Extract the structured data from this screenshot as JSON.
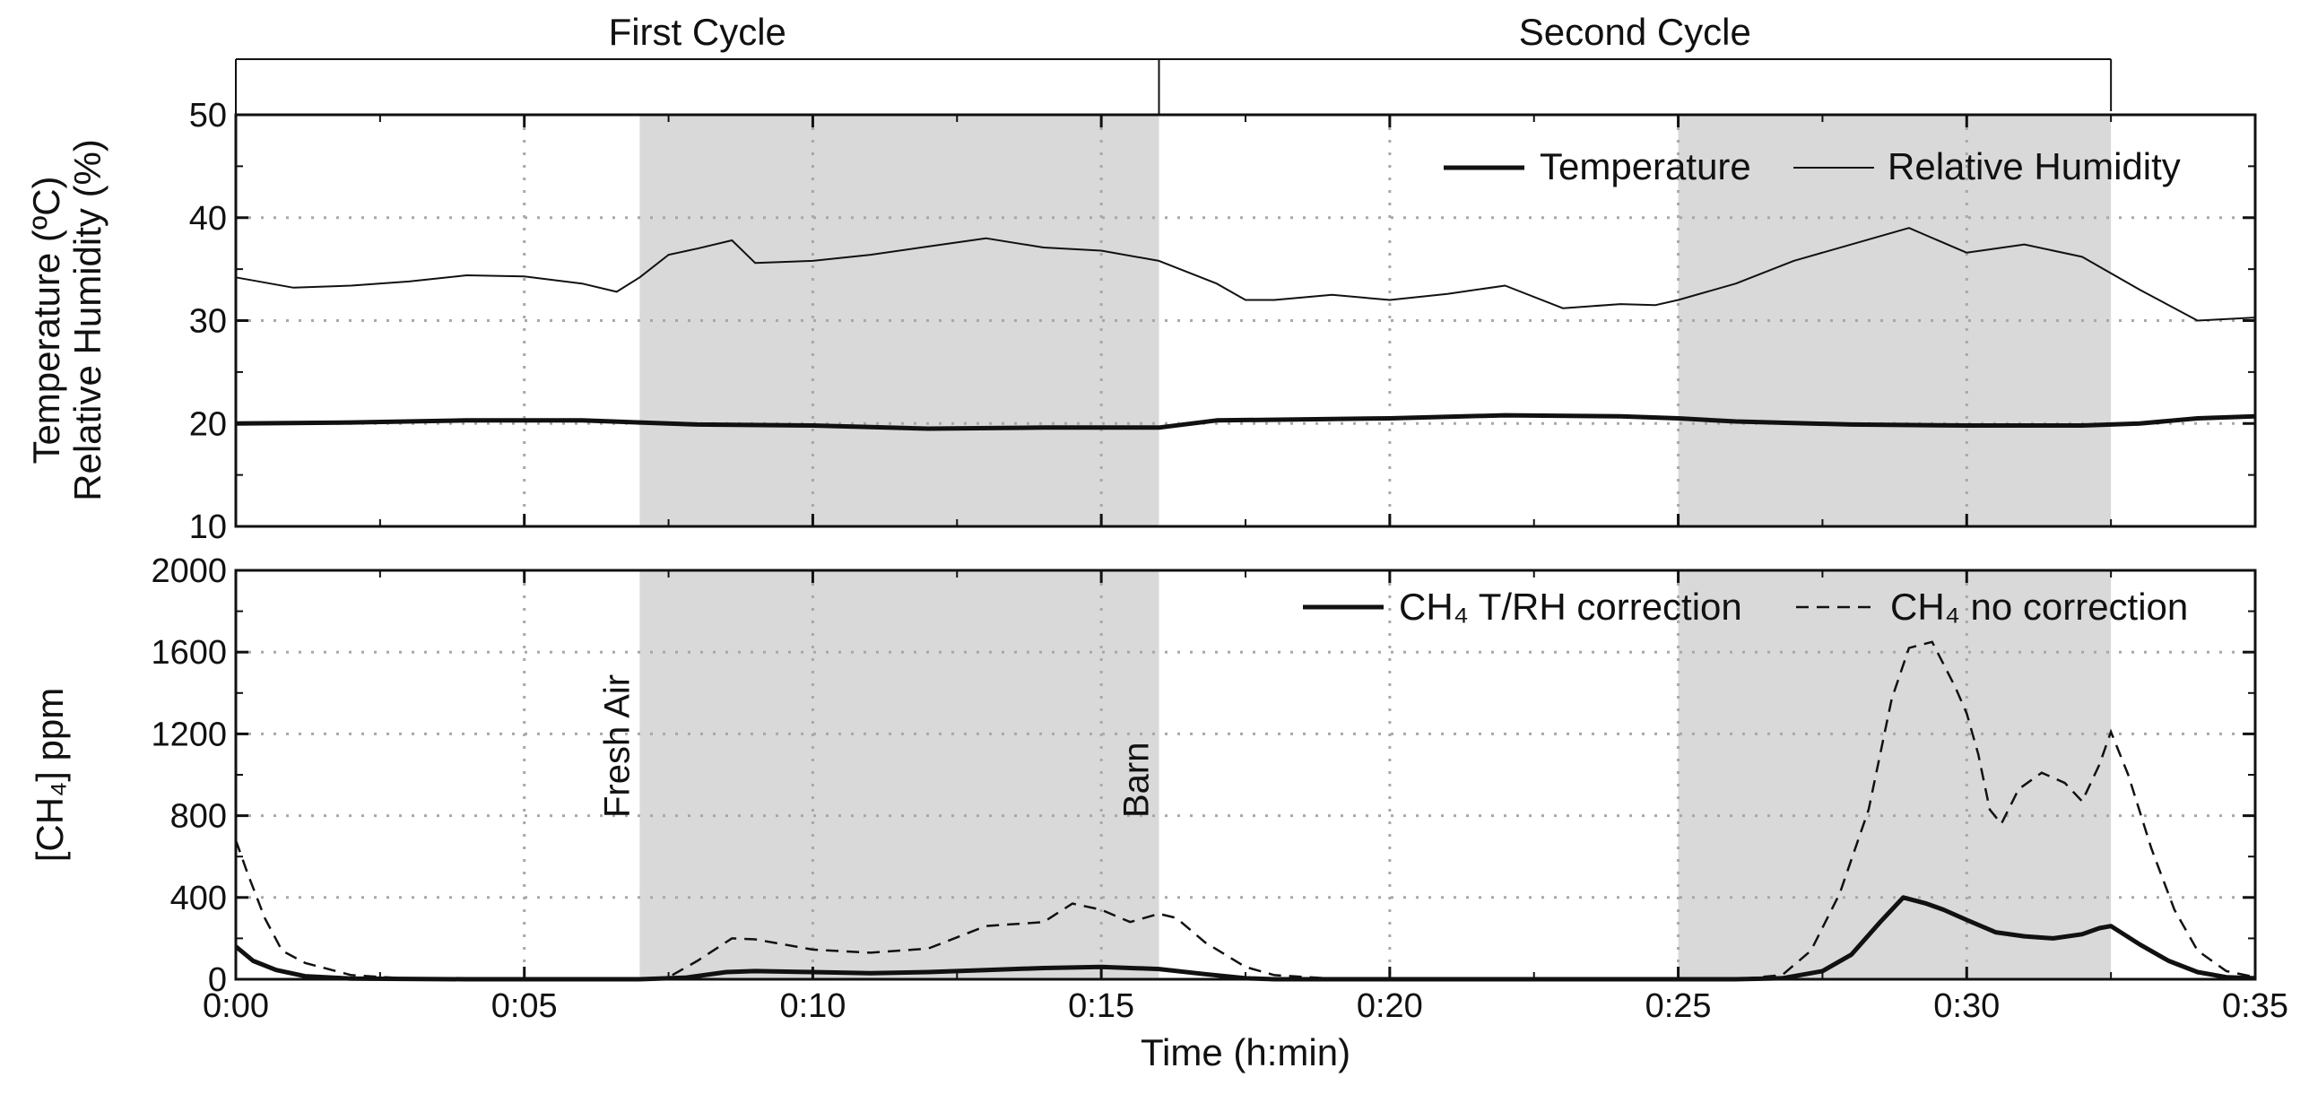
{
  "colors": {
    "line": "#111111",
    "shade": "#d9d9d9",
    "grid": "#a8a8a8",
    "background": "#ffffff"
  },
  "chart_data": [
    {
      "type": "line",
      "panel": "top",
      "cycles": [
        {
          "label": "First Cycle",
          "start": 0,
          "end": 16
        },
        {
          "label": "Second Cycle",
          "start": 16,
          "end": 32.5
        }
      ],
      "shaded_ranges": [
        [
          7,
          16
        ],
        [
          25,
          32.5
        ]
      ],
      "ylabel_lines": [
        "Temperature (ºC)",
        "Relative Humidity (%)"
      ],
      "ylim": [
        10,
        50
      ],
      "yticks": [
        {
          "value": 10,
          "label": "10"
        },
        {
          "value": 20,
          "label": "20"
        },
        {
          "value": 30,
          "label": "30"
        },
        {
          "value": 40,
          "label": "40"
        },
        {
          "value": 50,
          "label": "50"
        }
      ],
      "legend_position": "top-right",
      "series": [
        {
          "name": "Temperature",
          "style": "thick",
          "points": [
            [
              0,
              20.0
            ],
            [
              2,
              20.1
            ],
            [
              4,
              20.3
            ],
            [
              6,
              20.3
            ],
            [
              7,
              20.1
            ],
            [
              8,
              19.9
            ],
            [
              10,
              19.8
            ],
            [
              12,
              19.5
            ],
            [
              14,
              19.6
            ],
            [
              16,
              19.6
            ],
            [
              17,
              20.3
            ],
            [
              20,
              20.5
            ],
            [
              22,
              20.8
            ],
            [
              24,
              20.7
            ],
            [
              25,
              20.5
            ],
            [
              26,
              20.2
            ],
            [
              28,
              19.9
            ],
            [
              30,
              19.8
            ],
            [
              32,
              19.8
            ],
            [
              33,
              20.0
            ],
            [
              34,
              20.5
            ],
            [
              35,
              20.7
            ]
          ]
        },
        {
          "name": "Relative Humidity",
          "style": "thin",
          "points": [
            [
              0,
              34.2
            ],
            [
              1,
              33.2
            ],
            [
              2,
              33.4
            ],
            [
              3,
              33.8
            ],
            [
              4,
              34.4
            ],
            [
              5,
              34.3
            ],
            [
              6,
              33.6
            ],
            [
              6.6,
              32.8
            ],
            [
              7,
              34.2
            ],
            [
              7.5,
              36.4
            ],
            [
              8,
              37.0
            ],
            [
              8.6,
              37.8
            ],
            [
              9,
              35.6
            ],
            [
              10,
              35.8
            ],
            [
              11,
              36.4
            ],
            [
              12,
              37.2
            ],
            [
              13,
              38.0
            ],
            [
              14,
              37.1
            ],
            [
              15,
              36.8
            ],
            [
              16,
              35.8
            ],
            [
              17,
              33.6
            ],
            [
              17.5,
              32.0
            ],
            [
              18,
              32.0
            ],
            [
              19,
              32.5
            ],
            [
              20,
              32.0
            ],
            [
              21,
              32.6
            ],
            [
              22,
              33.4
            ],
            [
              23,
              31.2
            ],
            [
              24,
              31.6
            ],
            [
              24.6,
              31.5
            ],
            [
              25,
              32.0
            ],
            [
              26,
              33.6
            ],
            [
              27,
              35.8
            ],
            [
              28,
              37.4
            ],
            [
              29,
              39.0
            ],
            [
              30,
              36.6
            ],
            [
              31,
              37.4
            ],
            [
              32,
              36.2
            ],
            [
              33,
              33.0
            ],
            [
              34,
              30.0
            ],
            [
              35,
              30.3
            ]
          ]
        }
      ]
    },
    {
      "type": "line",
      "panel": "bottom",
      "xlabel": "Time (h:min)",
      "ylabel": "[CH₄] ppm",
      "xlim": [
        0,
        35
      ],
      "xticks": [
        {
          "value": 0,
          "label": "0:00"
        },
        {
          "value": 5,
          "label": "0:05"
        },
        {
          "value": 10,
          "label": "0:10"
        },
        {
          "value": 15,
          "label": "0:15"
        },
        {
          "value": 20,
          "label": "0:20"
        },
        {
          "value": 25,
          "label": "0:25"
        },
        {
          "value": 30,
          "label": "0:30"
        },
        {
          "value": 35,
          "label": "0:35"
        }
      ],
      "ylim": [
        0,
        2000
      ],
      "yticks": [
        {
          "value": 0,
          "label": "0"
        },
        {
          "value": 400,
          "label": "400"
        },
        {
          "value": 800,
          "label": "800"
        },
        {
          "value": 1200,
          "label": "1200"
        },
        {
          "value": 1600,
          "label": "1600"
        },
        {
          "value": 2000,
          "label": "2000"
        }
      ],
      "shaded_ranges": [
        [
          7,
          16
        ],
        [
          25,
          32.5
        ]
      ],
      "annotations": [
        {
          "text": "Fresh Air",
          "x": 7
        },
        {
          "text": "Barn",
          "x": 16
        }
      ],
      "legend_position": "top-right",
      "series": [
        {
          "name": "CH₄ T/RH correction",
          "style": "thick",
          "points": [
            [
              0,
              160
            ],
            [
              0.3,
              90
            ],
            [
              0.7,
              45
            ],
            [
              1.2,
              15
            ],
            [
              2,
              3
            ],
            [
              4,
              0
            ],
            [
              7,
              0
            ],
            [
              7.8,
              8
            ],
            [
              8.5,
              35
            ],
            [
              9,
              40
            ],
            [
              10,
              35
            ],
            [
              11,
              30
            ],
            [
              12,
              35
            ],
            [
              13,
              45
            ],
            [
              14,
              55
            ],
            [
              15,
              60
            ],
            [
              16,
              50
            ],
            [
              16.8,
              25
            ],
            [
              17.5,
              5
            ],
            [
              18,
              0
            ],
            [
              25,
              0
            ],
            [
              26,
              0
            ],
            [
              26.8,
              5
            ],
            [
              27.5,
              40
            ],
            [
              28,
              120
            ],
            [
              28.5,
              280
            ],
            [
              28.9,
              400
            ],
            [
              29.3,
              370
            ],
            [
              29.6,
              340
            ],
            [
              30,
              290
            ],
            [
              30.5,
              230
            ],
            [
              31,
              210
            ],
            [
              31.5,
              200
            ],
            [
              32,
              220
            ],
            [
              32.3,
              250
            ],
            [
              32.5,
              260
            ],
            [
              33,
              170
            ],
            [
              33.5,
              90
            ],
            [
              34,
              35
            ],
            [
              34.5,
              10
            ],
            [
              35,
              5
            ]
          ]
        },
        {
          "name": "CH₄ no correction",
          "style": "dashed",
          "points": [
            [
              0,
              680
            ],
            [
              0.2,
              520
            ],
            [
              0.5,
              300
            ],
            [
              0.8,
              140
            ],
            [
              1.2,
              80
            ],
            [
              2,
              20
            ],
            [
              3,
              3
            ],
            [
              4,
              0
            ],
            [
              6,
              0
            ],
            [
              7,
              0
            ],
            [
              7.5,
              10
            ],
            [
              8,
              90
            ],
            [
              8.6,
              200
            ],
            [
              9,
              195
            ],
            [
              9.5,
              170
            ],
            [
              10,
              145
            ],
            [
              11,
              130
            ],
            [
              12,
              150
            ],
            [
              13,
              260
            ],
            [
              14,
              280
            ],
            [
              14.5,
              370
            ],
            [
              15,
              340
            ],
            [
              15.5,
              280
            ],
            [
              16,
              320
            ],
            [
              16.3,
              300
            ],
            [
              16.8,
              180
            ],
            [
              17.5,
              60
            ],
            [
              18,
              20
            ],
            [
              19,
              3
            ],
            [
              20,
              0
            ],
            [
              25,
              0
            ],
            [
              26,
              0
            ],
            [
              26.8,
              20
            ],
            [
              27.3,
              140
            ],
            [
              27.8,
              420
            ],
            [
              28.3,
              830
            ],
            [
              28.7,
              1370
            ],
            [
              29,
              1620
            ],
            [
              29.4,
              1650
            ],
            [
              29.8,
              1430
            ],
            [
              30,
              1300
            ],
            [
              30.2,
              1100
            ],
            [
              30.4,
              830
            ],
            [
              30.6,
              760
            ],
            [
              30.9,
              930
            ],
            [
              31.3,
              1010
            ],
            [
              31.7,
              960
            ],
            [
              32,
              870
            ],
            [
              32.3,
              1050
            ],
            [
              32.5,
              1210
            ],
            [
              32.8,
              1000
            ],
            [
              33.2,
              640
            ],
            [
              33.6,
              340
            ],
            [
              34,
              140
            ],
            [
              34.5,
              40
            ],
            [
              35,
              10
            ]
          ]
        }
      ]
    }
  ]
}
